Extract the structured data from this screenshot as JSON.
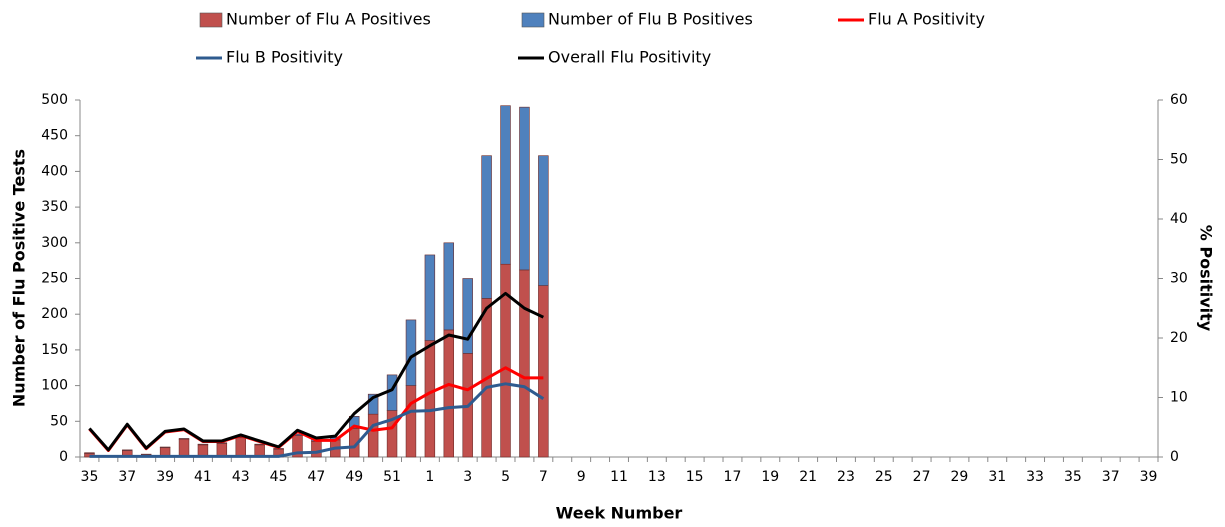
{
  "chart_data": {
    "type": "bar",
    "x_label": "Week Number",
    "y_label": "Number of Flu Positive Tests",
    "y2_label": "% Positivity",
    "categories": [
      "35",
      null,
      "37",
      null,
      "39",
      null,
      "41",
      null,
      "43",
      null,
      "45",
      null,
      "47",
      null,
      "49",
      null,
      "51",
      null,
      "1",
      null,
      "3",
      null,
      "5",
      null,
      "7",
      null,
      "9",
      null,
      "11",
      null,
      "13",
      null,
      "15",
      null,
      "17",
      null,
      "19",
      null,
      "21",
      null,
      "23",
      null,
      "25",
      null,
      "27",
      null,
      "29",
      null,
      "31",
      null,
      "33",
      null,
      "35",
      null,
      "37",
      null,
      "39"
    ],
    "ylim": [
      0,
      500
    ],
    "yticks": [
      0,
      50,
      100,
      150,
      200,
      250,
      300,
      350,
      400,
      450,
      500
    ],
    "y2lim": [
      0,
      60
    ],
    "y2ticks": [
      0,
      10,
      20,
      30,
      40,
      50,
      60
    ],
    "series": [
      {
        "name": "Number of Flu A Positives",
        "type": "bar",
        "color": "#c0504d",
        "values": [
          5,
          1,
          9,
          3,
          13,
          25,
          17,
          19,
          27,
          17,
          11,
          30,
          22,
          24,
          40,
          60,
          65,
          100,
          163,
          178,
          145,
          222,
          270,
          262,
          240,
          null,
          null,
          null,
          null,
          null,
          null,
          null,
          null,
          null,
          null,
          null,
          null,
          null,
          null,
          null,
          null,
          null,
          null,
          null,
          null,
          null,
          null,
          null,
          null,
          null,
          null,
          null,
          null,
          null,
          null,
          null,
          null
        ]
      },
      {
        "name": "Number of Flu B Positives",
        "type": "bar",
        "color": "#4f81bd",
        "values": [
          1,
          0,
          1,
          1,
          1,
          1,
          1,
          1,
          1,
          1,
          1,
          2,
          3,
          4,
          17,
          28,
          50,
          92,
          120,
          122,
          105,
          200,
          222,
          228,
          182,
          null,
          null,
          null,
          null,
          null,
          null,
          null,
          null,
          null,
          null,
          null,
          null,
          null,
          null,
          null,
          null,
          null,
          null,
          null,
          null,
          null,
          null,
          null,
          null,
          null,
          null,
          null,
          null,
          null,
          null,
          null,
          null
        ]
      },
      {
        "name": "Flu A Positivity",
        "type": "line",
        "axis": "y2",
        "color": "#ff0000",
        "values": [
          4.7,
          1.1,
          5.4,
          1.4,
          4.2,
          4.6,
          2.6,
          2.6,
          3.6,
          2.6,
          1.6,
          4.3,
          2.8,
          2.8,
          5.2,
          4.5,
          4.9,
          9,
          10.8,
          12.2,
          11.3,
          13.2,
          15,
          13.3,
          13.3,
          null,
          null,
          null,
          null,
          null,
          null,
          null,
          null,
          null,
          null,
          null,
          null,
          null,
          null,
          null,
          null,
          null,
          null,
          null,
          null,
          null,
          null,
          null,
          null,
          null,
          null,
          null,
          null,
          null,
          null,
          null,
          null
        ]
      },
      {
        "name": "Flu B Positivity",
        "type": "line",
        "axis": "y2",
        "color": "#2f5b8f",
        "values": [
          0.1,
          0.1,
          0.1,
          0.1,
          0.1,
          0.1,
          0.1,
          0.1,
          0.1,
          0.1,
          0.1,
          0.7,
          0.8,
          1.5,
          1.7,
          5.3,
          6.3,
          7.7,
          7.8,
          8.3,
          8.5,
          11.7,
          12.3,
          11.8,
          9.8,
          null,
          null,
          null,
          null,
          null,
          null,
          null,
          null,
          null,
          null,
          null,
          null,
          null,
          null,
          null,
          null,
          null,
          null,
          null,
          null,
          null,
          null,
          null,
          null,
          null,
          null,
          null,
          null,
          null,
          null,
          null,
          null
        ]
      },
      {
        "name": "Overall Flu Positivity",
        "type": "line",
        "axis": "y2",
        "color": "#000000",
        "values": [
          4.8,
          1.2,
          5.5,
          1.5,
          4.3,
          4.7,
          2.7,
          2.7,
          3.7,
          2.7,
          1.7,
          4.5,
          3.2,
          3.5,
          7.3,
          10,
          11.3,
          16.8,
          18.7,
          20.5,
          19.8,
          25,
          27.5,
          25,
          23.5,
          null,
          null,
          null,
          null,
          null,
          null,
          null,
          null,
          null,
          null,
          null,
          null,
          null,
          null,
          null,
          null,
          null,
          null,
          null,
          null,
          null,
          null,
          null,
          null,
          null,
          null,
          null,
          null,
          null,
          null,
          null,
          null
        ]
      }
    ]
  }
}
